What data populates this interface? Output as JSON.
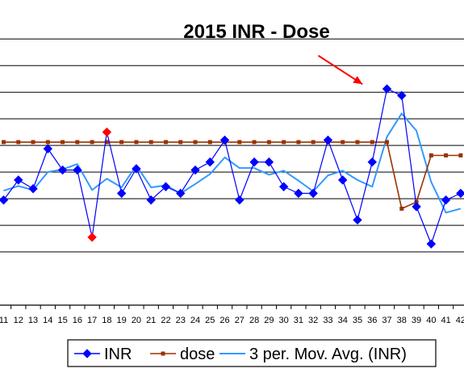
{
  "chart_data": {
    "type": "line",
    "title": "2015 INR - Dose",
    "xlabel": "",
    "ylabel": "",
    "categories": [
      "11",
      "12",
      "13",
      "14",
      "15",
      "16",
      "17",
      "18",
      "19",
      "20",
      "21",
      "22",
      "23",
      "24",
      "25",
      "26",
      "27",
      "28",
      "29",
      "30",
      "31",
      "32",
      "33",
      "34",
      "35",
      "36",
      "37",
      "38",
      "39",
      "40",
      "41",
      "42"
    ],
    "series": [
      {
        "name": "INR",
        "color": "#0000FF",
        "marker": "diamond",
        "values": [
          2.18,
          2.48,
          2.35,
          2.95,
          2.63,
          2.63,
          1.62,
          3.2,
          2.28,
          2.65,
          2.18,
          2.38,
          2.28,
          2.63,
          2.75,
          3.08,
          2.18,
          2.75,
          2.75,
          2.38,
          2.28,
          2.28,
          3.08,
          2.48,
          1.88,
          2.75,
          3.85,
          3.75,
          2.08,
          1.52,
          2.18,
          2.28
        ],
        "highlighted_points": [
          {
            "category": "17",
            "color": "#FF0000"
          },
          {
            "category": "18",
            "color": "#FF0000"
          }
        ]
      },
      {
        "name": "dose",
        "color": "#993300",
        "marker": "square",
        "values": [
          3.05,
          3.05,
          3.05,
          3.05,
          3.05,
          3.05,
          3.05,
          3.05,
          3.05,
          3.05,
          3.05,
          3.05,
          3.05,
          3.05,
          3.05,
          3.05,
          3.05,
          3.05,
          3.05,
          3.05,
          3.05,
          3.05,
          3.05,
          3.05,
          3.05,
          3.05,
          3.05,
          2.05,
          2.15,
          2.85,
          2.85,
          2.85
        ]
      },
      {
        "name": "3 per. Mov. Avg. (INR)",
        "color": "#3399FF",
        "marker": "none",
        "values": [
          2.32,
          2.39,
          2.33,
          2.6,
          2.64,
          2.72,
          2.33,
          2.5,
          2.37,
          2.7,
          2.37,
          2.4,
          2.28,
          2.42,
          2.57,
          2.82,
          2.66,
          2.66,
          2.56,
          2.62,
          2.47,
          2.31,
          2.55,
          2.62,
          2.48,
          2.38,
          3.13,
          3.48,
          3.22,
          2.45,
          1.99,
          2.05
        ]
      }
    ],
    "ylim": [
      0.6,
      4.7
    ],
    "gridlines_y": [
      1.4,
      1.8,
      2.2,
      2.6,
      3.0,
      3.4,
      3.8,
      4.2,
      4.6
    ],
    "grid": true,
    "legend_position": "bottom",
    "annotation": {
      "type": "arrow",
      "color": "#FF0000",
      "from_category": "33",
      "from_value": 4.35,
      "to_category": "36",
      "to_value": 3.92
    }
  }
}
